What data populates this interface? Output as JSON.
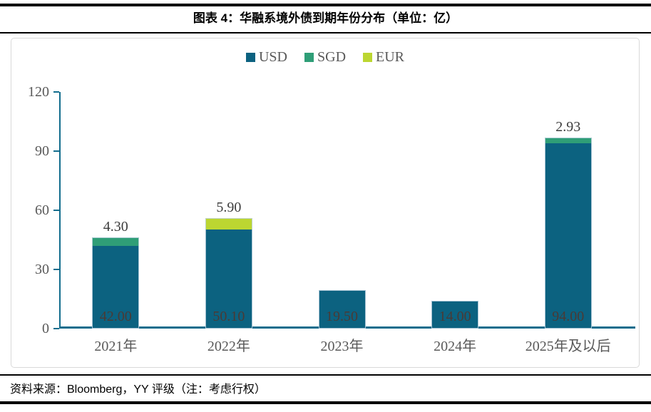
{
  "header": {
    "title": "图表 4：华融系境外债到期年份分布（单位：亿）"
  },
  "footer": {
    "source": "资料来源：Bloomberg，YY 评级（注：考虑行权）"
  },
  "colors": {
    "usd": "#0c6280",
    "sgd": "#2f9e77",
    "eur": "#bcd631",
    "axis": "#136d8d",
    "inside_label": "#4a3a35",
    "top_label": "#3d3d3d",
    "tick_label": "#595959",
    "box_border": "#d9d9d9"
  },
  "chart_data": {
    "type": "bar",
    "stacked": true,
    "title": "图表 4：华融系境外债到期年份分布（单位：亿）",
    "xlabel": "",
    "ylabel": "",
    "categories": [
      "2021年",
      "2022年",
      "2023年",
      "2024年",
      "2025年及以后"
    ],
    "series": [
      {
        "name": "USD",
        "color_key": "usd",
        "values": [
          42.0,
          50.1,
          19.5,
          14.0,
          94.0
        ]
      },
      {
        "name": "SGD",
        "color_key": "sgd",
        "values": [
          4.3,
          0,
          0,
          0,
          2.93
        ]
      },
      {
        "name": "EUR",
        "color_key": "eur",
        "values": [
          0,
          5.9,
          0,
          0,
          0
        ]
      }
    ],
    "inside_labels": [
      "42.00",
      "50.10",
      "19.50",
      "14.00",
      "94.00"
    ],
    "top_labels": [
      "4.30",
      "5.90",
      "",
      "",
      "2.93"
    ],
    "y_ticks": [
      0,
      30,
      60,
      90,
      120
    ],
    "ylim": [
      0,
      120
    ],
    "legend_position": "top-center",
    "grid": false
  }
}
